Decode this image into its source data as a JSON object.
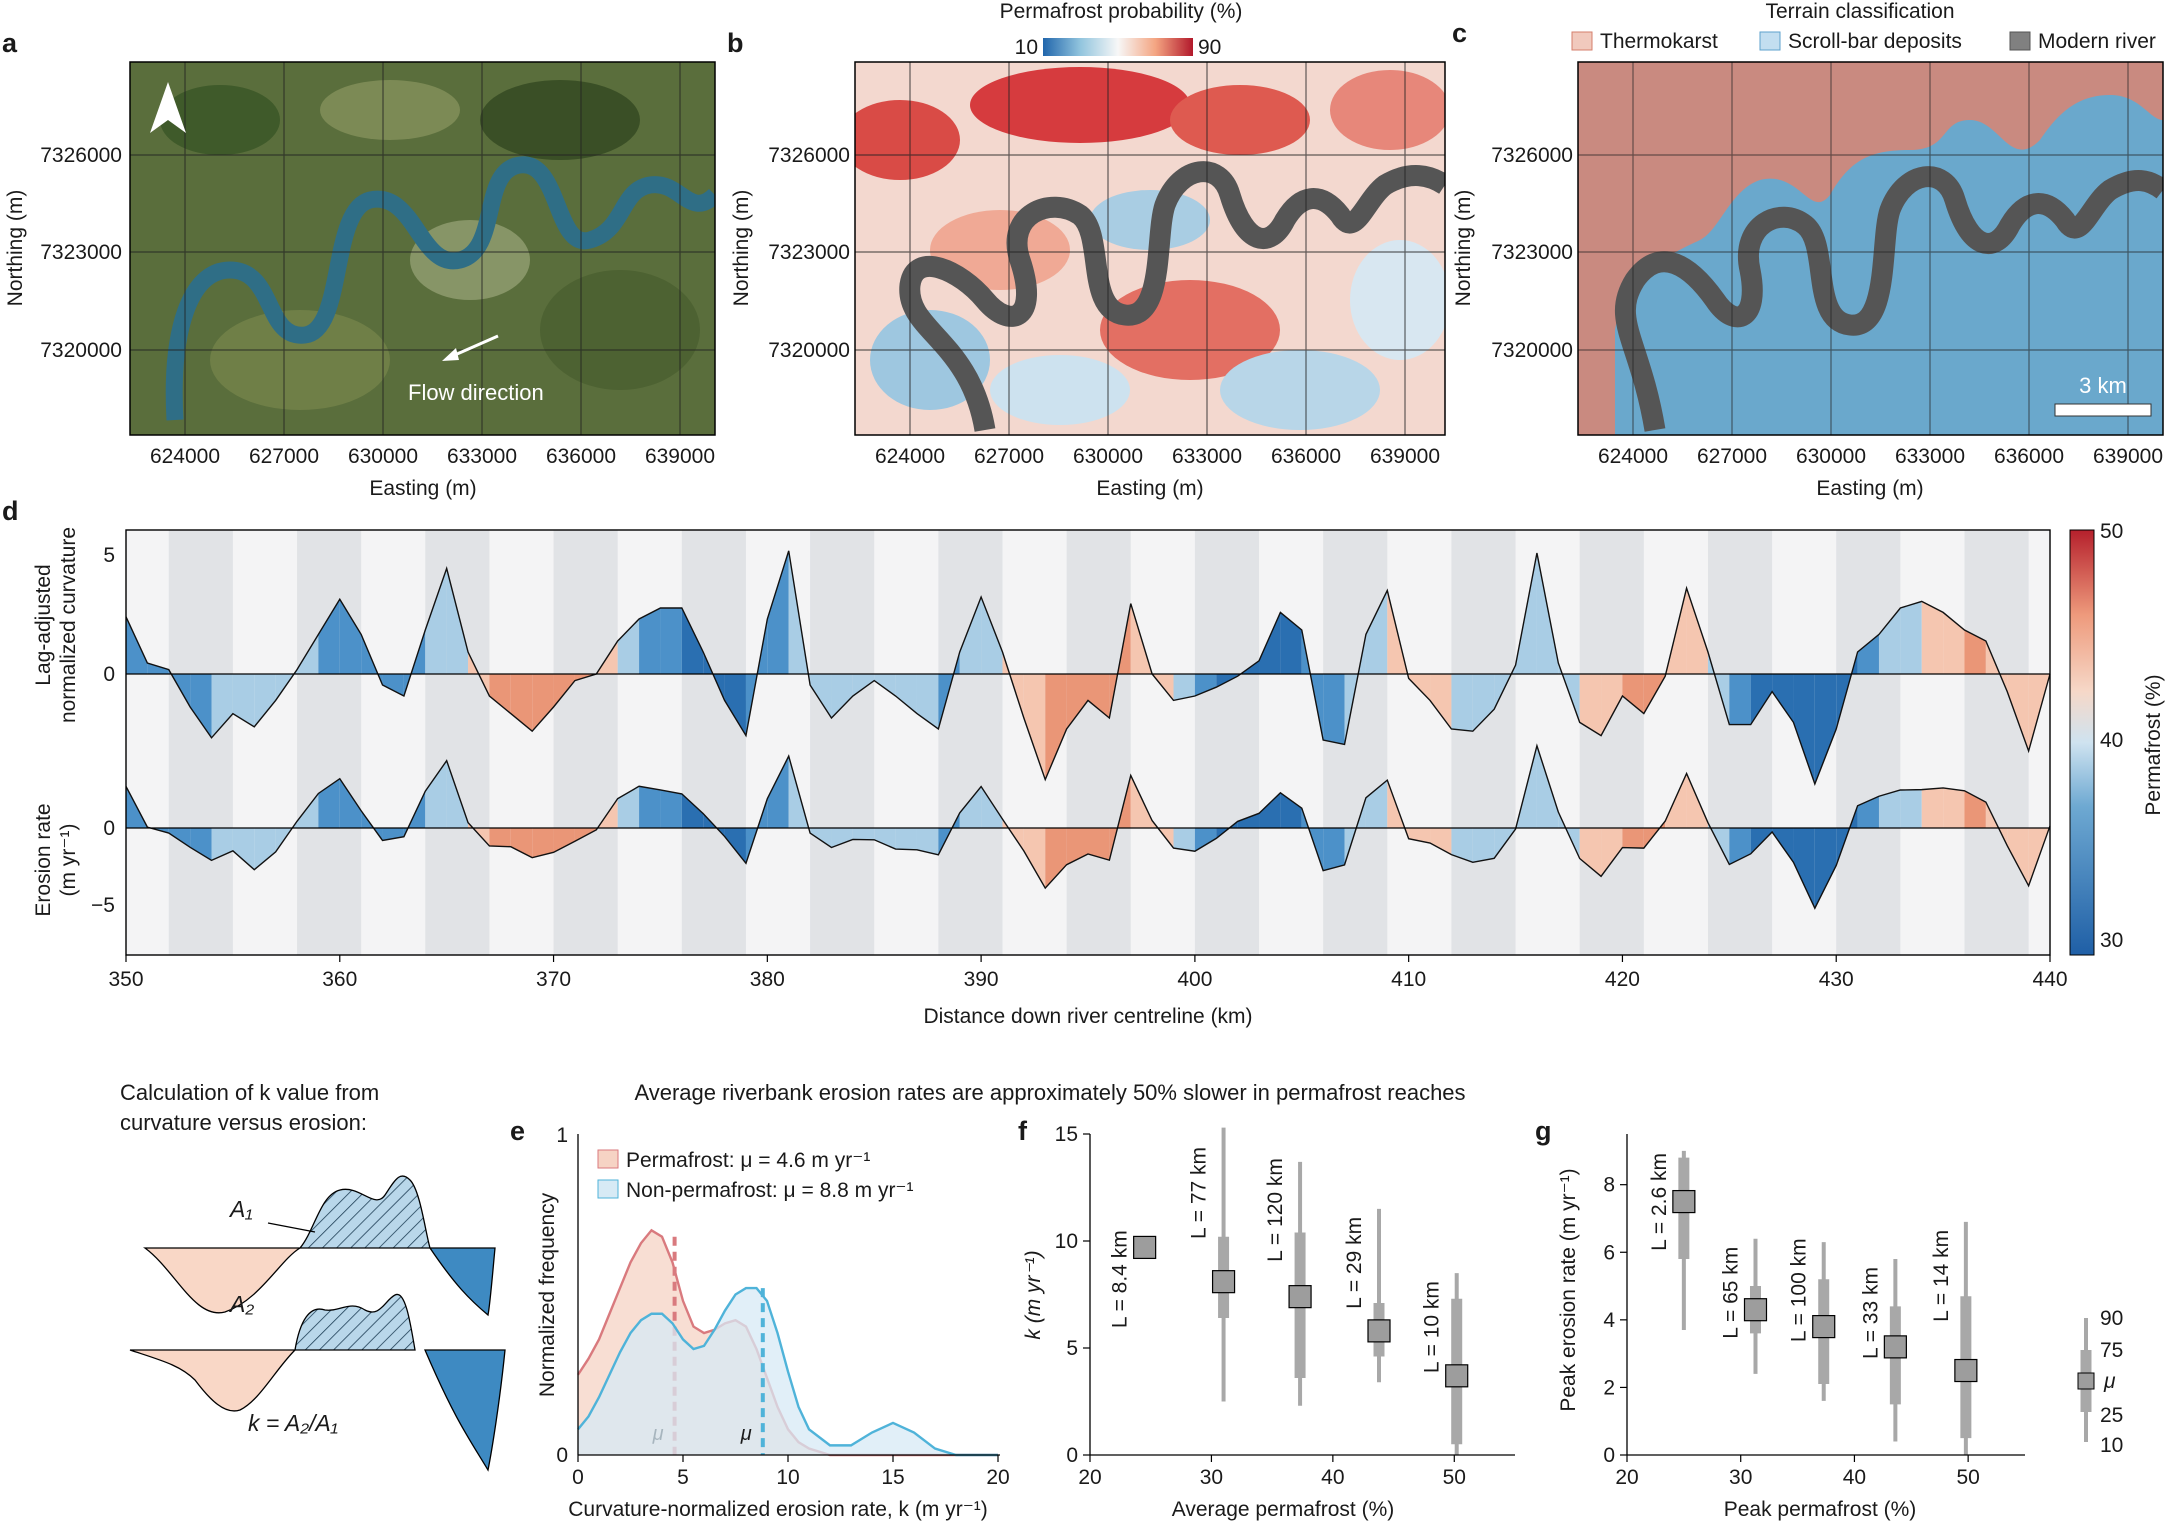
{
  "figure": {
    "panel_letters": [
      "a",
      "b",
      "c",
      "d",
      "e",
      "f",
      "g"
    ],
    "maps": {
      "xticks": [
        "624000",
        "627000",
        "630000",
        "633000",
        "636000",
        "639000"
      ],
      "yticks": [
        "7326000",
        "7323000",
        "7320000"
      ],
      "xlabel": "Easting (m)",
      "ylabel": "Northing (m)",
      "flow_label": "Flow direction",
      "scale_label": "3 km",
      "prob_title": "Permafrost probability (%)",
      "prob_min": "10",
      "prob_max": "90",
      "terrain_title": "Terrain classification",
      "terrain_legend": [
        "Thermokarst",
        "Scroll-bar deposits",
        "Modern river"
      ],
      "colors": {
        "thermokarst": "#c98a80",
        "scroll": "#6aa8cc",
        "river": "#555555",
        "water": "#2f6e86"
      }
    },
    "panel_d": {
      "ylabel_top": [
        "Lag-adjusted",
        "normalized curvature"
      ],
      "ylabel_bottom": [
        "Erosion rate",
        "(m yr⁻¹)"
      ],
      "yticks_top": [
        "5",
        "0"
      ],
      "yticks_bottom": [
        "0",
        "−5"
      ],
      "xticks": [
        "350",
        "360",
        "370",
        "380",
        "390",
        "400",
        "410",
        "420",
        "430",
        "440"
      ],
      "xlabel": "Distance down river centreline (km)",
      "cbar_label": "Permafrost (%)",
      "cbar_ticks": [
        "50",
        "40",
        "30"
      ]
    },
    "schematic": {
      "title": [
        "Calculation of k value from",
        "curvature versus erosion:"
      ],
      "a1": "A₁",
      "a2": "A₂",
      "formula": "k = A₂/A₁"
    },
    "banner": "Average riverbank erosion rates are approximately 50% slower in permafrost reaches",
    "panel_e": {
      "legend": [
        "Permafrost: μ = 4.6 m yr⁻¹",
        "Non-permafrost: μ = 8.8 m yr⁻¹"
      ],
      "ylabel": "Normalized frequency",
      "xlabel": "Curvature-normalized erosion rate, k (m yr⁻¹)",
      "xticks": [
        "0",
        "5",
        "10",
        "15",
        "20"
      ],
      "yticks": [
        "1",
        "0"
      ],
      "mu": "μ"
    },
    "panel_f": {
      "ylabel": "k (m yr⁻¹)",
      "xlabel": "Average permafrost (%)",
      "xticks": [
        "20",
        "30",
        "40",
        "50"
      ],
      "yticks": [
        "15",
        "10",
        "5",
        "0"
      ],
      "labels": [
        "L = 8.4 km",
        "L = 77 km",
        "L = 120 km",
        "L = 29 km",
        "L = 10 km"
      ]
    },
    "panel_g": {
      "ylabel": "Peak erosion rate (m yr⁻¹)",
      "xlabel": "Peak permafrost (%)",
      "xticks": [
        "20",
        "30",
        "40",
        "50"
      ],
      "yticks": [
        "8",
        "6",
        "4",
        "2",
        "0"
      ],
      "labels": [
        "L = 2.6 km",
        "L = 65 km",
        "L = 100 km",
        "L = 33 km",
        "L = 14 km"
      ],
      "key": [
        "90",
        "75",
        "μ",
        "25",
        "10"
      ]
    }
  },
  "chart_data": [
    {
      "type": "area",
      "panel": "e",
      "xlabel": "Curvature-normalized erosion rate, k (m yr⁻¹)",
      "ylabel": "Normalized frequency",
      "xlim": [
        0,
        20
      ],
      "ylim": [
        0,
        1
      ],
      "series": [
        {
          "name": "Permafrost",
          "color": "#d97a7e",
          "fill": "#f6d3c4",
          "x": [
            0,
            0.5,
            1,
            1.5,
            2,
            2.5,
            3,
            3.5,
            4,
            4.5,
            5,
            5.5,
            6,
            6.5,
            7,
            7.5,
            8,
            8.5,
            9,
            9.5,
            10,
            10.5,
            11,
            12,
            13,
            14,
            15,
            16,
            17,
            18,
            19,
            20
          ],
          "y": [
            0.25,
            0.3,
            0.36,
            0.44,
            0.52,
            0.6,
            0.66,
            0.7,
            0.68,
            0.6,
            0.48,
            0.4,
            0.38,
            0.39,
            0.41,
            0.42,
            0.4,
            0.33,
            0.24,
            0.15,
            0.08,
            0.04,
            0.02,
            0.0,
            0.0,
            0.0,
            0.0,
            0.0,
            0.0,
            0.0,
            0.0,
            0.0
          ],
          "mean": 4.6
        },
        {
          "name": "Non-permafrost",
          "color": "#4fb3d9",
          "fill": "#d7eaf5",
          "x": [
            0,
            0.5,
            1,
            1.5,
            2,
            2.5,
            3,
            3.5,
            4,
            4.5,
            5,
            5.5,
            6,
            6.5,
            7,
            7.5,
            8,
            8.5,
            9,
            9.5,
            10,
            10.5,
            11,
            12,
            13,
            14,
            15,
            16,
            17,
            18,
            19,
            20
          ],
          "y": [
            0.08,
            0.12,
            0.18,
            0.25,
            0.32,
            0.38,
            0.42,
            0.44,
            0.44,
            0.41,
            0.36,
            0.33,
            0.34,
            0.39,
            0.45,
            0.5,
            0.52,
            0.52,
            0.48,
            0.38,
            0.26,
            0.15,
            0.08,
            0.03,
            0.03,
            0.07,
            0.1,
            0.07,
            0.02,
            0.0,
            0.0,
            0.0
          ],
          "mean": 8.8
        }
      ]
    },
    {
      "type": "boxplot",
      "panel": "f",
      "xlabel": "Average permafrost (%)",
      "ylabel": "k (m yr⁻¹)",
      "xlim": [
        20,
        55
      ],
      "ylim": [
        0,
        15
      ],
      "points": [
        {
          "x": 24.5,
          "mean": 9.7,
          "p25": 9.7,
          "p75": 9.7,
          "p10": 9.7,
          "p90": 9.7,
          "label": "L = 8.4 km"
        },
        {
          "x": 31,
          "mean": 8.1,
          "p25": 6.4,
          "p75": 10.2,
          "p10": 2.5,
          "p90": 15.3,
          "label": "L = 77 km"
        },
        {
          "x": 37.3,
          "mean": 7.4,
          "p25": 3.6,
          "p75": 10.4,
          "p10": 2.3,
          "p90": 13.7,
          "label": "L = 120 km"
        },
        {
          "x": 43.8,
          "mean": 5.8,
          "p25": 4.6,
          "p75": 7.1,
          "p10": 3.4,
          "p90": 11.5,
          "label": "L = 29 km"
        },
        {
          "x": 50.2,
          "mean": 3.7,
          "p25": 0.5,
          "p75": 7.3,
          "p10": 0.0,
          "p90": 8.5,
          "label": "L = 10 km"
        }
      ]
    },
    {
      "type": "boxplot",
      "panel": "g",
      "xlabel": "Peak permafrost (%)",
      "ylabel": "Peak erosion rate (m yr⁻¹)",
      "xlim": [
        20,
        55
      ],
      "ylim": [
        0,
        9.5
      ],
      "points": [
        {
          "x": 25,
          "mean": 7.5,
          "p25": 5.8,
          "p75": 8.8,
          "p10": 3.7,
          "p90": 9.0,
          "label": "L = 2.6 km"
        },
        {
          "x": 31.3,
          "mean": 4.3,
          "p25": 3.6,
          "p75": 5.0,
          "p10": 2.4,
          "p90": 6.4,
          "label": "L = 65 km"
        },
        {
          "x": 37.3,
          "mean": 3.8,
          "p25": 2.1,
          "p75": 5.2,
          "p10": 1.6,
          "p90": 6.3,
          "label": "L = 100 km"
        },
        {
          "x": 43.6,
          "mean": 3.2,
          "p25": 1.5,
          "p75": 4.4,
          "p10": 0.4,
          "p90": 5.8,
          "label": "L = 33 km"
        },
        {
          "x": 49.8,
          "mean": 2.5,
          "p25": 0.5,
          "p75": 4.7,
          "p10": 0.0,
          "p90": 6.9,
          "label": "L = 14 km"
        }
      ]
    },
    {
      "type": "area",
      "panel": "d",
      "xlabel": "Distance down river centreline (km)",
      "xlim": [
        350,
        440
      ],
      "colorbar": {
        "label": "Permafrost (%)",
        "range": [
          29,
          51
        ]
      },
      "series": [
        {
          "name": "Lag-adjusted normalized curvature",
          "x": [
            350,
            351,
            352,
            353,
            354,
            355,
            356,
            357,
            358,
            359,
            360,
            361,
            362,
            363,
            364,
            365,
            366,
            367,
            368,
            369,
            370,
            371,
            372,
            373,
            374,
            375,
            376,
            377,
            378,
            379,
            380,
            381,
            382,
            383,
            384,
            385,
            386,
            387,
            388,
            389,
            390,
            391,
            392,
            393,
            394,
            395,
            396,
            397,
            398,
            399,
            400,
            401,
            402,
            403,
            404,
            405,
            406,
            407,
            408,
            409,
            410,
            411,
            412,
            413,
            414,
            415,
            416,
            417,
            418,
            419,
            420,
            421,
            422,
            423,
            424,
            425,
            426,
            427,
            428,
            429,
            430,
            431,
            432,
            433,
            434,
            435,
            436,
            437,
            438,
            439,
            440
          ],
          "y": [
            2.6,
            0.5,
            0.2,
            -1.5,
            -2.9,
            -1.8,
            -2.4,
            -1.2,
            0.2,
            1.8,
            3.4,
            1.8,
            -0.5,
            -1.0,
            2.0,
            4.8,
            1.0,
            -1.0,
            -1.8,
            -2.6,
            -1.5,
            -0.3,
            0.0,
            1.5,
            2.5,
            3.0,
            3.0,
            1.0,
            -1.2,
            -2.8,
            2.5,
            5.6,
            -0.5,
            -2.0,
            -1.0,
            -0.3,
            -1.0,
            -1.8,
            -2.5,
            1.0,
            3.5,
            1.0,
            -2.0,
            -4.8,
            -2.5,
            -1.2,
            -2.0,
            3.2,
            0.0,
            -1.2,
            -1.0,
            -0.6,
            -0.1,
            0.6,
            2.8,
            2.0,
            -3.0,
            -3.2,
            1.8,
            3.8,
            -0.2,
            -1.2,
            -2.5,
            -2.6,
            -1.6,
            0.4,
            5.5,
            0.5,
            -2.2,
            -2.8,
            -1.0,
            -1.8,
            -0.1,
            3.9,
            1.0,
            -2.3,
            -2.3,
            -0.8,
            -2.2,
            -5.0,
            -2.5,
            1.0,
            1.8,
            3.0,
            3.3,
            2.8,
            2.0,
            1.5,
            -0.8,
            -3.5,
            0.0
          ]
        }
      ]
    }
  ]
}
